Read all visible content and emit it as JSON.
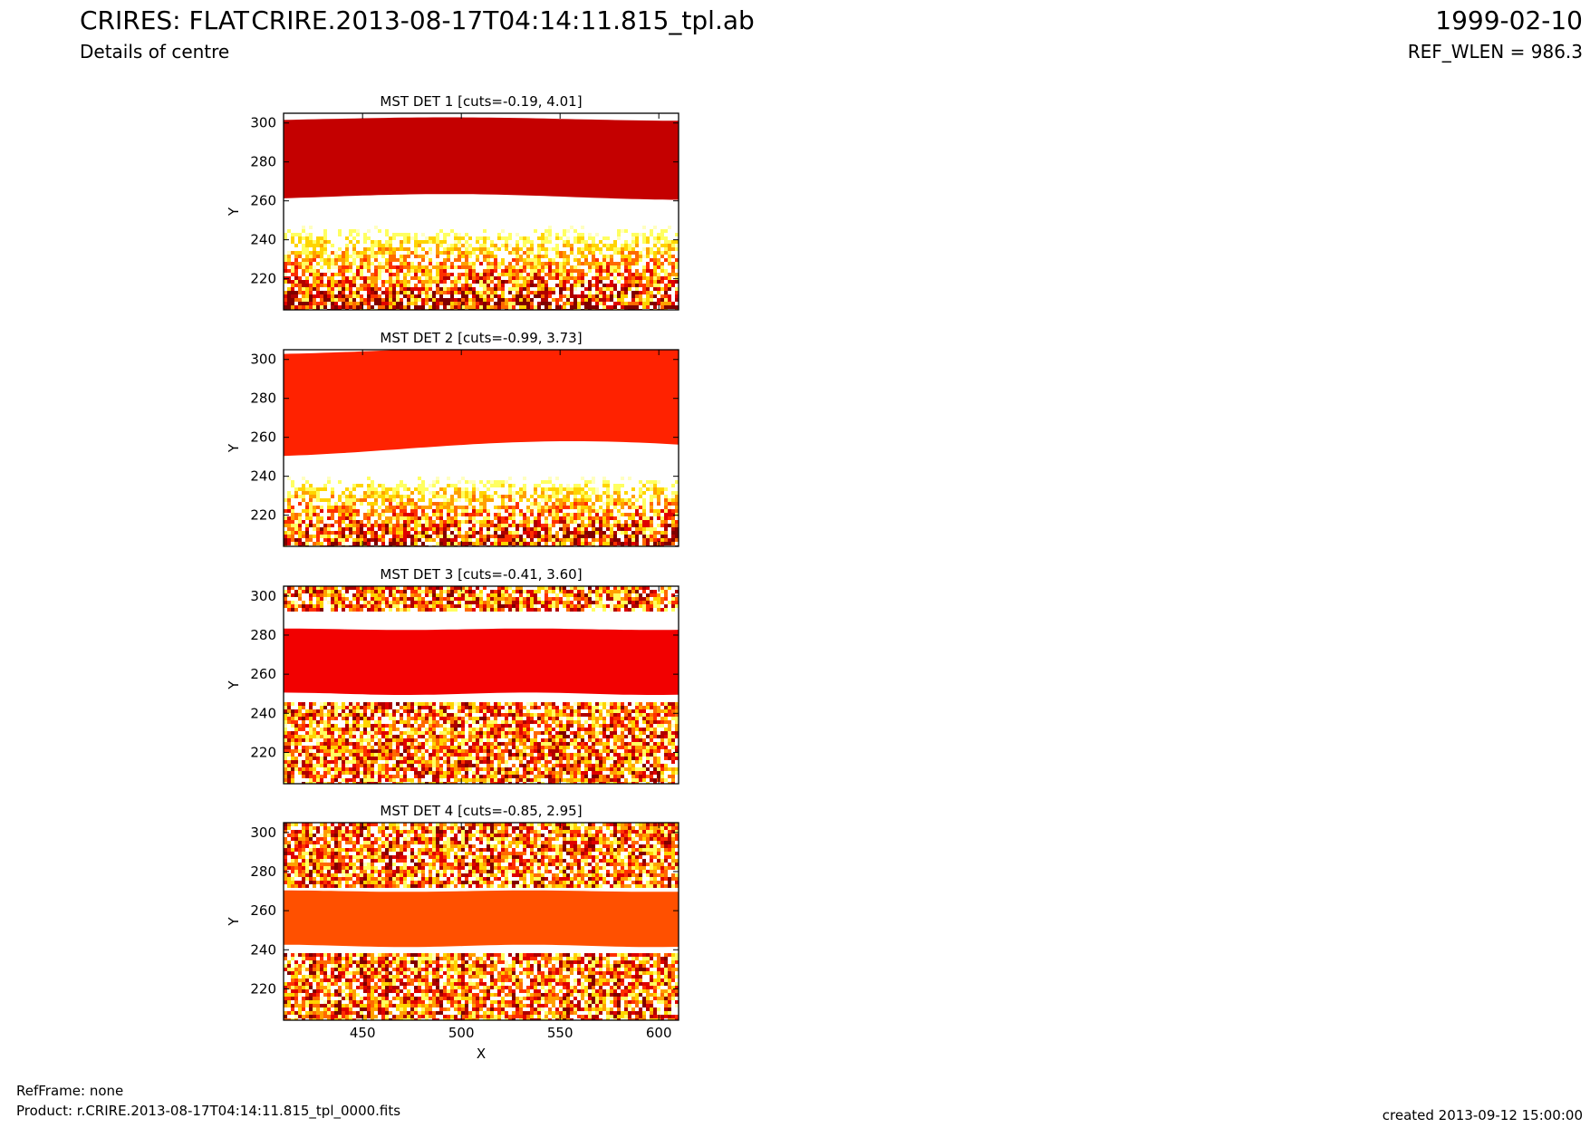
{
  "header": {
    "title": "CRIRES: FLAT",
    "subtitle": "Details of centre",
    "center_title": "CRIRE.2013-08-17T04:14:11.815_tpl.ab",
    "date": "1999-02-10",
    "ref_wlen": "REF_WLEN = 986.3"
  },
  "footer": {
    "ref_frame": "RefFrame: none",
    "product": "Product: r.CRIRE.2013-08-17T04:14:11.815_tpl_0000.fits",
    "created": "created 2013-09-12 15:00:00"
  },
  "colors": {
    "det1_band": "#c40000",
    "det2_band": "#ff2200",
    "det3_band": "#f20000",
    "det4_band": "#ff5000",
    "colormap": "hot (white-yellow-red)"
  },
  "chart_data": [
    {
      "type": "heatmap",
      "title": "MST DET 1 [cuts=-0.19, 4.01]",
      "xlabel": "",
      "ylabel": "Y",
      "xlim": [
        410,
        610
      ],
      "ylim": [
        204,
        305
      ],
      "x_ticks": [
        "450",
        "500",
        "550",
        "600"
      ],
      "y_ticks": [
        "220",
        "240",
        "260",
        "280",
        "300"
      ],
      "cuts": [
        -0.19,
        4.01
      ],
      "saturated_band_y": [
        262,
        302
      ]
    },
    {
      "type": "heatmap",
      "title": "MST DET 2 [cuts=-0.99, 3.73]",
      "xlabel": "",
      "ylabel": "Y",
      "xlim": [
        410,
        610
      ],
      "ylim": [
        204,
        305
      ],
      "x_ticks": [
        "450",
        "500",
        "550",
        "600"
      ],
      "y_ticks": [
        "220",
        "240",
        "260",
        "280",
        "300"
      ],
      "cuts": [
        -0.99,
        3.73
      ],
      "saturated_band_y": [
        254,
        305
      ]
    },
    {
      "type": "heatmap",
      "title": "MST DET 3 [cuts=-0.41, 3.60]",
      "xlabel": "",
      "ylabel": "Y",
      "xlim": [
        410,
        610
      ],
      "ylim": [
        204,
        305
      ],
      "x_ticks": [
        "450",
        "500",
        "550",
        "600"
      ],
      "y_ticks": [
        "220",
        "240",
        "260",
        "280",
        "300"
      ],
      "cuts": [
        -0.41,
        3.6
      ],
      "saturated_band_y": [
        250,
        283
      ]
    },
    {
      "type": "heatmap",
      "title": "MST DET 4 [cuts=-0.85, 2.95]",
      "xlabel": "X",
      "ylabel": "Y",
      "xlim": [
        410,
        610
      ],
      "ylim": [
        204,
        305
      ],
      "x_ticks": [
        "450",
        "500",
        "550",
        "600"
      ],
      "y_ticks": [
        "220",
        "240",
        "260",
        "280",
        "300"
      ],
      "cuts": [
        -0.85,
        2.95
      ],
      "saturated_band_y": [
        242,
        270
      ]
    }
  ]
}
